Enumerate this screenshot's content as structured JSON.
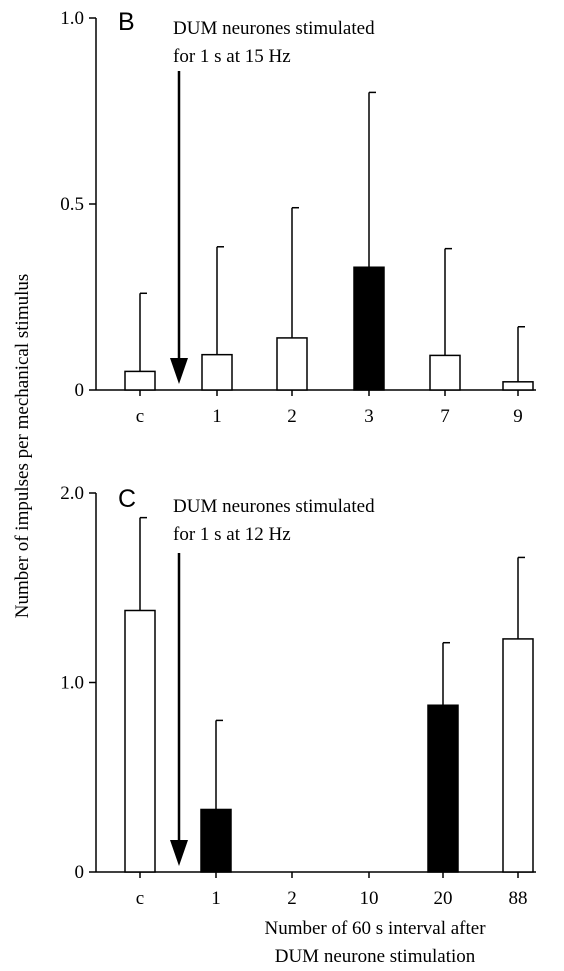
{
  "ylabel": "Number of impulses per mechanical stimulus",
  "xlabel_lines": [
    "Number of 60 s interval after",
    "DUM neurone stimulation"
  ],
  "chart_data": [
    {
      "type": "bar",
      "panel": "B",
      "annotation_lines": [
        "DUM neurones stimulated",
        "for 1 s at 15 Hz"
      ],
      "categories": [
        "c",
        "1",
        "2",
        "3",
        "7",
        "9"
      ],
      "values": [
        0.05,
        0.095,
        0.14,
        0.33,
        0.093,
        0.022
      ],
      "error_upper": [
        0.26,
        0.385,
        0.49,
        0.8,
        0.38,
        0.17
      ],
      "fill": [
        "white",
        "white",
        "white",
        "black",
        "white",
        "white"
      ],
      "ylim": [
        0,
        1.0
      ],
      "yticks": [
        0,
        0.5,
        1.0
      ],
      "ytick_labels": [
        "0",
        "0.5",
        "1.0"
      ]
    },
    {
      "type": "bar",
      "panel": "C",
      "annotation_lines": [
        "DUM neurones stimulated",
        "for 1 s at 12 Hz"
      ],
      "categories": [
        "c",
        "1",
        "2",
        "10",
        "20",
        "88"
      ],
      "values": [
        1.38,
        0.33,
        0,
        0,
        0.88,
        1.23
      ],
      "error_upper": [
        1.87,
        0.8,
        0,
        0,
        1.21,
        1.66
      ],
      "fill": [
        "white",
        "black",
        "white",
        "white",
        "black",
        "white"
      ],
      "ylim": [
        0,
        2.0
      ],
      "yticks": [
        0,
        1.0,
        2.0
      ],
      "ytick_labels": [
        "0",
        "1.0",
        "2.0"
      ]
    }
  ]
}
